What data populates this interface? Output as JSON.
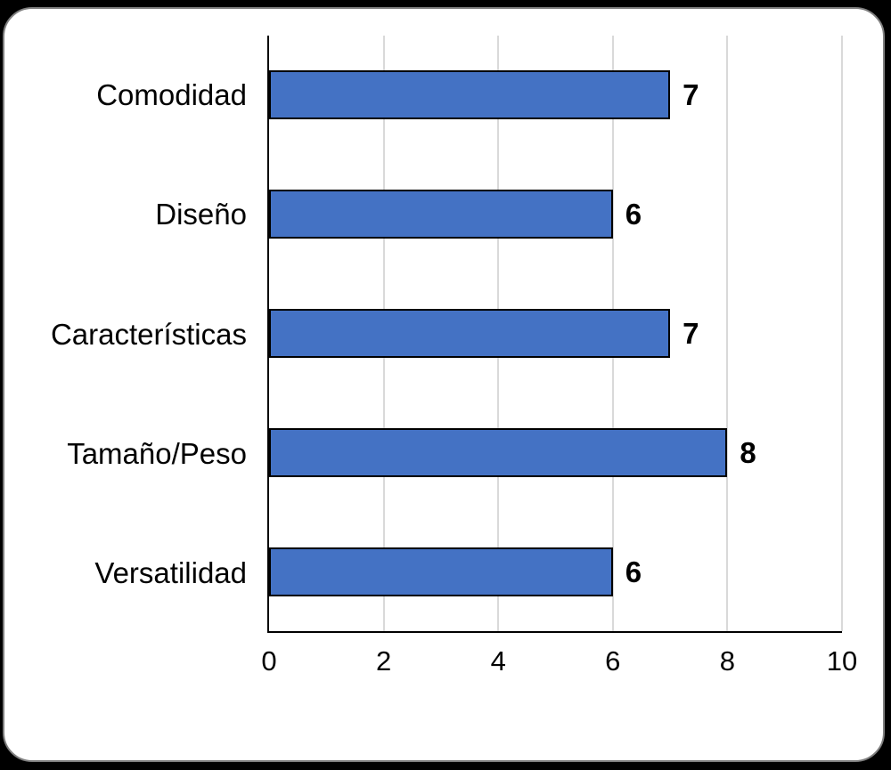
{
  "page": {
    "background": "#000000"
  },
  "card": {
    "background": "#FFFFFF",
    "border_color": "#7F7F7F"
  },
  "chart_data": {
    "type": "bar",
    "orientation": "horizontal",
    "title": "",
    "categories": [
      "Comodidad",
      "Diseño",
      "Características",
      "Tamaño/Peso",
      "Versatilidad"
    ],
    "values": [
      7,
      6,
      7,
      8,
      6
    ],
    "data_labels": [
      "7",
      "6",
      "7",
      "8",
      "6"
    ],
    "xlabel": "",
    "ylabel": "",
    "xlim": [
      0,
      10
    ],
    "xticks": [
      0,
      2,
      4,
      6,
      8,
      10
    ],
    "grid": "vertical-gridlines",
    "legend": "none",
    "colors": {
      "bar_fill": "#4472C4",
      "bar_border": "#000000",
      "gridline": "#D9D9D9",
      "axis_line": "#000000",
      "text": "#000000"
    }
  }
}
